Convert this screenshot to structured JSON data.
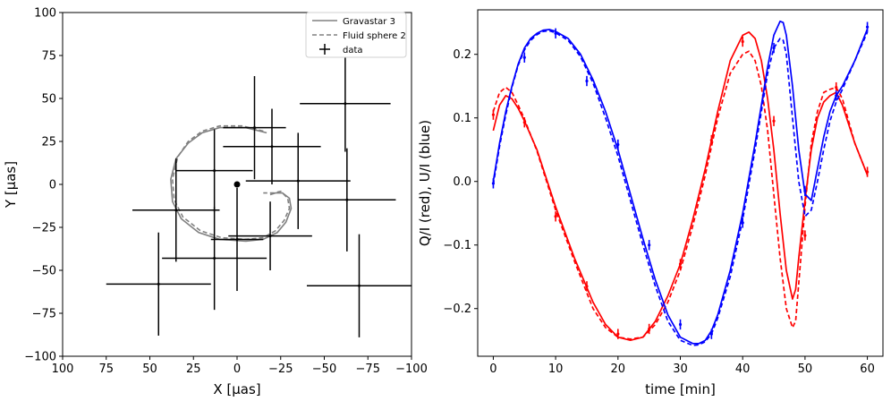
{
  "chart_data": [
    {
      "type": "scatter",
      "xlabel": "X [μas]",
      "ylabel": "Y [μas]",
      "xlim": [
        100,
        -100
      ],
      "ylim": [
        -100,
        100
      ],
      "xticks": [
        100,
        75,
        50,
        25,
        0,
        -25,
        -50,
        -75,
        -100
      ],
      "xtick_labels": [
        "100",
        "75",
        "50",
        "25",
        "0",
        "−25",
        "−50",
        "−75",
        "−100"
      ],
      "yticks": [
        100,
        75,
        50,
        25,
        0,
        -25,
        -50,
        -75,
        -100
      ],
      "ytick_labels": [
        "100",
        "75",
        "50",
        "25",
        "0",
        "−25",
        "−50",
        "−75",
        "−100"
      ],
      "legend": {
        "position": "top-right",
        "entries": [
          {
            "label": "Gravastar 3",
            "style": "solid",
            "color": "#808080"
          },
          {
            "label": "Fluid sphere 2",
            "style": "dashed",
            "color": "#808080"
          },
          {
            "label": "data",
            "style": "errorbar",
            "color": "#000000"
          }
        ]
      },
      "center_point": {
        "x": 0,
        "y": 0
      },
      "data_points": [
        {
          "x": -62,
          "y": 47,
          "xerr": 26,
          "yerr": 28
        },
        {
          "x": -10,
          "y": 33,
          "xerr": 18,
          "yerr": 30
        },
        {
          "x": -20,
          "y": 22,
          "xerr": 28,
          "yerr": 22
        },
        {
          "x": -35,
          "y": 2,
          "xerr": 30,
          "yerr": 28
        },
        {
          "x": -63,
          "y": -9,
          "xerr": 28,
          "yerr": 30
        },
        {
          "x": 13,
          "y": 8,
          "xerr": 22,
          "yerr": 24
        },
        {
          "x": 35,
          "y": -15,
          "xerr": 25,
          "yerr": 30
        },
        {
          "x": 13,
          "y": -43,
          "xerr": 30,
          "yerr": 30
        },
        {
          "x": 0,
          "y": -32,
          "xerr": 15,
          "yerr": 30
        },
        {
          "x": -19,
          "y": -30,
          "xerr": 24,
          "yerr": 20
        },
        {
          "x": 45,
          "y": -58,
          "xerr": 30,
          "yerr": 30
        },
        {
          "x": -70,
          "y": -59,
          "xerr": 30,
          "yerr": 30
        }
      ],
      "model_curves": [
        {
          "name": "Gravastar 3",
          "style": "solid",
          "color": "#808080",
          "points": [
            [
              -17,
              30
            ],
            [
              -5,
              33
            ],
            [
              10,
              33
            ],
            [
              20,
              30
            ],
            [
              28,
              24
            ],
            [
              35,
              15
            ],
            [
              38,
              3
            ],
            [
              37,
              -10
            ],
            [
              32,
              -20
            ],
            [
              22,
              -28
            ],
            [
              10,
              -32
            ],
            [
              -5,
              -33
            ],
            [
              -15,
              -32
            ],
            [
              -23,
              -28
            ],
            [
              -28,
              -22
            ],
            [
              -31,
              -14
            ],
            [
              -30,
              -8
            ],
            [
              -26,
              -5
            ],
            [
              -22,
              -5
            ],
            [
              -19,
              -6
            ]
          ]
        },
        {
          "name": "Fluid sphere 2",
          "style": "dashed",
          "color": "#808080",
          "points": [
            [
              -15,
              31
            ],
            [
              -3,
              34
            ],
            [
              10,
              34
            ],
            [
              20,
              31
            ],
            [
              28,
              25
            ],
            [
              34,
              16
            ],
            [
              37,
              3
            ],
            [
              36,
              -9
            ],
            [
              31,
              -19
            ],
            [
              21,
              -27
            ],
            [
              9,
              -31
            ],
            [
              -5,
              -32
            ],
            [
              -15,
              -31
            ],
            [
              -22,
              -27
            ],
            [
              -27,
              -21
            ],
            [
              -30,
              -14
            ],
            [
              -29,
              -8
            ],
            [
              -25,
              -4
            ],
            [
              -21,
              -5
            ],
            [
              -15,
              -5
            ]
          ]
        }
      ]
    },
    {
      "type": "line",
      "xlabel": "time [min]",
      "ylabel": "Q/I (red), U/I (blue)",
      "xlim": [
        -2.5,
        62.5
      ],
      "ylim": [
        -0.275,
        0.27
      ],
      "xticks": [
        0,
        10,
        20,
        30,
        40,
        50,
        60
      ],
      "xtick_labels": [
        "0",
        "10",
        "20",
        "30",
        "40",
        "50",
        "60"
      ],
      "yticks": [
        0.2,
        0.1,
        0.0,
        -0.1,
        -0.2
      ],
      "ytick_labels": [
        "0.2",
        "0.1",
        "0.0",
        "−0.1",
        "−0.2"
      ],
      "series": [
        {
          "name": "Q/I solid",
          "color": "#ff0000",
          "style": "solid",
          "x": [
            0,
            1,
            2,
            3,
            4,
            5,
            7,
            10,
            13,
            16,
            18,
            20,
            22,
            24,
            26,
            28,
            30,
            32,
            34,
            36,
            38,
            40,
            41,
            42,
            43,
            44,
            45,
            46,
            47,
            48,
            48.5,
            49,
            50,
            51,
            52,
            53,
            54,
            55,
            56,
            58,
            60
          ],
          "y": [
            0.08,
            0.12,
            0.135,
            0.13,
            0.115,
            0.095,
            0.05,
            -0.04,
            -0.12,
            -0.19,
            -0.225,
            -0.245,
            -0.25,
            -0.245,
            -0.22,
            -0.18,
            -0.13,
            -0.06,
            0.02,
            0.11,
            0.19,
            0.23,
            0.235,
            0.225,
            0.19,
            0.13,
            0.05,
            -0.05,
            -0.14,
            -0.185,
            -0.17,
            -0.12,
            -0.03,
            0.05,
            0.1,
            0.125,
            0.135,
            0.14,
            0.12,
            0.06,
            0.01
          ]
        },
        {
          "name": "Q/I dashed",
          "color": "#ff0000",
          "style": "dashed",
          "x": [
            0,
            1,
            2,
            3,
            4,
            5,
            7,
            10,
            13,
            16,
            18,
            20,
            22,
            24,
            26,
            28,
            30,
            32,
            34,
            36,
            38,
            40,
            41,
            42,
            43,
            44,
            45,
            46,
            47,
            48,
            48.5,
            49,
            50,
            51,
            52,
            53,
            54,
            55,
            56,
            58,
            60
          ],
          "y": [
            0.11,
            0.14,
            0.148,
            0.14,
            0.12,
            0.098,
            0.048,
            -0.045,
            -0.125,
            -0.2,
            -0.23,
            -0.245,
            -0.248,
            -0.245,
            -0.225,
            -0.19,
            -0.14,
            -0.07,
            0.01,
            0.1,
            0.17,
            0.2,
            0.205,
            0.19,
            0.15,
            0.08,
            -0.02,
            -0.12,
            -0.2,
            -0.23,
            -0.22,
            -0.16,
            -0.04,
            0.06,
            0.11,
            0.14,
            0.145,
            0.148,
            0.13,
            0.06,
            0.01
          ]
        },
        {
          "name": "U/I solid",
          "color": "#0000ff",
          "style": "solid",
          "x": [
            0,
            1,
            2,
            3,
            4,
            5,
            6,
            7,
            8,
            9,
            10,
            12,
            14,
            16,
            18,
            20,
            22,
            24,
            26,
            28,
            30,
            32,
            33,
            34,
            35,
            36,
            38,
            40,
            42,
            43,
            44,
            45,
            46,
            46.5,
            47,
            48,
            49,
            50,
            51,
            52,
            53,
            54,
            55,
            56,
            58,
            60
          ],
          "y": [
            0.0,
            0.06,
            0.11,
            0.15,
            0.185,
            0.21,
            0.225,
            0.233,
            0.238,
            0.239,
            0.236,
            0.225,
            0.2,
            0.16,
            0.11,
            0.05,
            -0.02,
            -0.09,
            -0.155,
            -0.21,
            -0.245,
            -0.255,
            -0.255,
            -0.25,
            -0.235,
            -0.21,
            -0.14,
            -0.05,
            0.06,
            0.12,
            0.18,
            0.23,
            0.252,
            0.25,
            0.23,
            0.15,
            0.05,
            -0.02,
            -0.03,
            0.02,
            0.07,
            0.11,
            0.135,
            0.15,
            0.19,
            0.24
          ]
        },
        {
          "name": "U/I dashed",
          "color": "#0000ff",
          "style": "dashed",
          "x": [
            0,
            1,
            2,
            3,
            4,
            5,
            6,
            7,
            8,
            9,
            10,
            12,
            14,
            16,
            18,
            20,
            22,
            24,
            26,
            28,
            30,
            32,
            33,
            34,
            35,
            36,
            38,
            40,
            42,
            43,
            44,
            45,
            46,
            46.5,
            47,
            48,
            49,
            50,
            51,
            52,
            53,
            54,
            55,
            56,
            58,
            60
          ],
          "y": [
            -0.005,
            0.055,
            0.105,
            0.148,
            0.183,
            0.207,
            0.222,
            0.231,
            0.236,
            0.237,
            0.234,
            0.222,
            0.196,
            0.155,
            0.1,
            0.04,
            -0.03,
            -0.1,
            -0.165,
            -0.22,
            -0.25,
            -0.258,
            -0.257,
            -0.252,
            -0.24,
            -0.215,
            -0.15,
            -0.06,
            0.05,
            0.11,
            0.17,
            0.21,
            0.225,
            0.222,
            0.2,
            0.1,
            0.0,
            -0.055,
            -0.045,
            0.0,
            0.05,
            0.095,
            0.125,
            0.145,
            0.19,
            0.235
          ]
        }
      ],
      "data_points": [
        {
          "series": "Q/I",
          "color": "#ff0000",
          "points": [
            [
              0,
              0.105
            ],
            [
              5,
              0.093
            ],
            [
              10,
              -0.055
            ],
            [
              15,
              -0.165
            ],
            [
              20,
              -0.24
            ],
            [
              25,
              -0.232
            ],
            [
              30,
              -0.13
            ],
            [
              35,
              0.065
            ],
            [
              40,
              0.22
            ],
            [
              45,
              0.095
            ],
            [
              50,
              -0.085
            ],
            [
              55,
              0.148
            ],
            [
              60,
              0.015
            ]
          ]
        },
        {
          "series": "U/I",
          "color": "#0000ff",
          "points": [
            [
              0,
              -0.003
            ],
            [
              5,
              0.195
            ],
            [
              10,
              0.233
            ],
            [
              15,
              0.158
            ],
            [
              20,
              0.058
            ],
            [
              25,
              -0.1
            ],
            [
              30,
              -0.225
            ],
            [
              35,
              -0.24
            ],
            [
              40,
              -0.065
            ],
            [
              45,
              0.21
            ],
            [
              50,
              -0.015
            ],
            [
              55,
              0.135
            ],
            [
              60,
              0.243
            ]
          ]
        }
      ]
    }
  ]
}
